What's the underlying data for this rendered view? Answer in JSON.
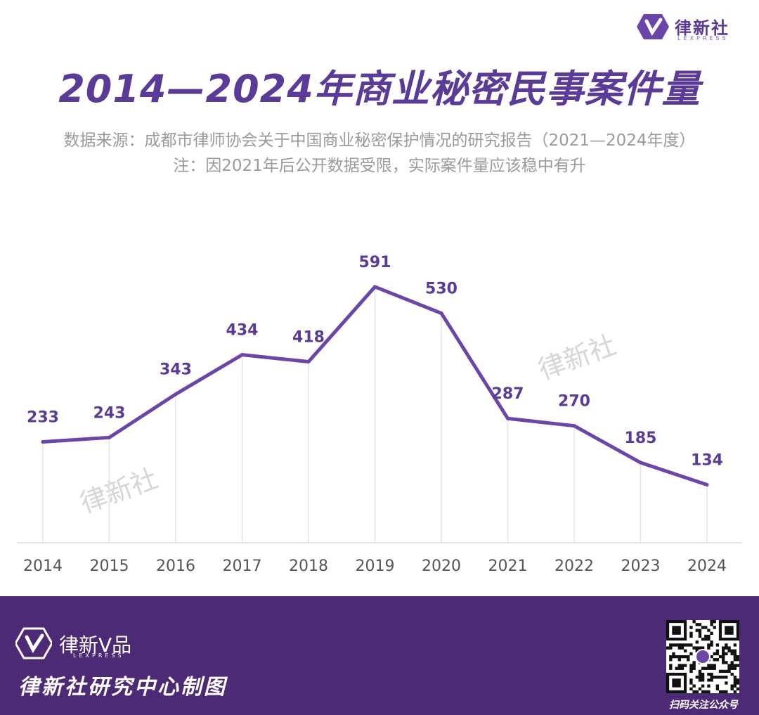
{
  "brand": {
    "name": "律新社",
    "sub": "LEXPRESS",
    "footer_name": "律新V品",
    "footer_sub": "LEXPRESS",
    "credit": "律新社研究中心制图",
    "qr_caption": "扫码关注公众号"
  },
  "colors": {
    "accent": "#5b3b98",
    "line": "#6b45a8",
    "footer_bg": "#4d2a76",
    "label": "#5b3b98",
    "tick": "#555555"
  },
  "watermarks": [
    "律新社",
    "律新社"
  ],
  "chart_data": {
    "type": "line",
    "title": "2014—2024年商业秘密民事案件量",
    "subtitle": [
      "数据来源：成都市律师协会关于中国商业秘密保护情况的研究报告（2021—2024年度）",
      "注：因2021年后公开数据受限，实际案件量应该稳中有升"
    ],
    "xlabel": "",
    "ylabel": "",
    "categories": [
      "2014",
      "2015",
      "2016",
      "2017",
      "2018",
      "2019",
      "2020",
      "2021",
      "2022",
      "2023",
      "2024"
    ],
    "values": [
      233,
      243,
      343,
      434,
      418,
      591,
      530,
      287,
      270,
      185,
      134
    ],
    "ylim": [
      0,
      700
    ],
    "grid": false,
    "legend": "none"
  }
}
